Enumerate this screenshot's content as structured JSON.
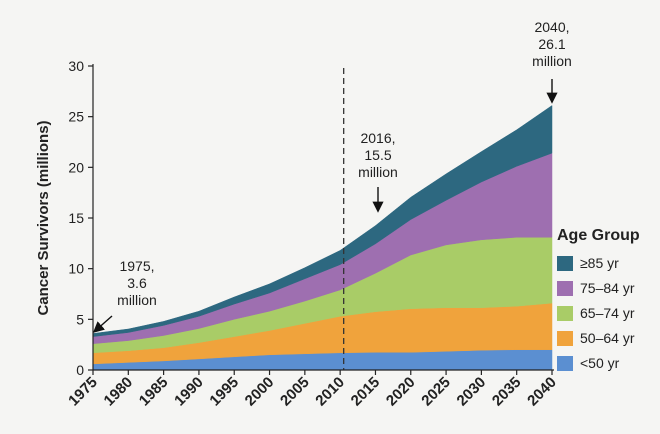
{
  "chart_data": {
    "type": "area",
    "stacked": true,
    "ylabel": "Cancer Survivors (millions)",
    "xlabel": "",
    "ylim": [
      0,
      30
    ],
    "xlim": [
      1975,
      2040
    ],
    "yticks": [
      0,
      5,
      10,
      15,
      20,
      25,
      30
    ],
    "xticks": [
      1975,
      1980,
      1985,
      1990,
      1995,
      2000,
      2005,
      2010,
      2015,
      2020,
      2025,
      2030,
      2035,
      2040
    ],
    "x": [
      1975,
      1980,
      1985,
      1990,
      1995,
      2000,
      2005,
      2010,
      2015,
      2020,
      2025,
      2030,
      2035,
      2040
    ],
    "series": [
      {
        "name": "<50 yr",
        "color": "#5b8fd1",
        "values": [
          0.6,
          0.75,
          0.9,
          1.1,
          1.3,
          1.5,
          1.6,
          1.7,
          1.75,
          1.75,
          1.85,
          1.95,
          2.0,
          2.0
        ]
      },
      {
        "name": "50–64 yr",
        "color": "#f0a33c",
        "values": [
          1.1,
          1.15,
          1.3,
          1.6,
          2.0,
          2.4,
          3.0,
          3.6,
          4.0,
          4.3,
          4.3,
          4.2,
          4.3,
          4.6
        ]
      },
      {
        "name": "65–74 yr",
        "color": "#a9cc67",
        "values": [
          0.9,
          1.0,
          1.2,
          1.4,
          1.7,
          1.9,
          2.2,
          2.6,
          3.8,
          5.3,
          6.2,
          6.7,
          6.8,
          6.5
        ]
      },
      {
        "name": "75–84 yr",
        "color": "#9e6fb0",
        "values": [
          0.7,
          0.8,
          1.0,
          1.2,
          1.5,
          1.8,
          2.2,
          2.5,
          2.9,
          3.5,
          4.4,
          5.7,
          7.0,
          8.3
        ]
      },
      {
        "name": "≥85 yr",
        "color": "#2d6880",
        "values": [
          0.3,
          0.35,
          0.4,
          0.5,
          0.7,
          0.9,
          1.1,
          1.4,
          1.8,
          2.2,
          2.6,
          3.0,
          3.6,
          4.7
        ]
      }
    ],
    "reference_line": {
      "x": 2010.5,
      "style": "dashed"
    },
    "annotations": [
      {
        "id": "a1975",
        "lines": [
          "1975,",
          "3.6",
          "million"
        ],
        "x": 1975,
        "y": 3.6
      },
      {
        "id": "a2016",
        "lines": [
          "2016,",
          "15.5",
          "million"
        ],
        "x": 2016,
        "y": 15.5
      },
      {
        "id": "a2040",
        "lines": [
          "2040,",
          "26.1",
          "million"
        ],
        "x": 2040,
        "y": 26.1
      }
    ],
    "legend": {
      "title": "Age Group",
      "position": "right",
      "order": [
        "≥85 yr",
        "75–84 yr",
        "65–74 yr",
        "50–64 yr",
        "<50 yr"
      ]
    }
  }
}
